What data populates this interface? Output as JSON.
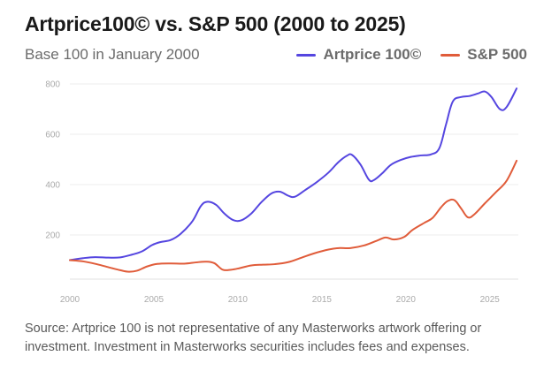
{
  "header": {
    "title": "Artprice100© vs. S&P 500 (2000 to 2025)",
    "subtitle": "Base 100 in January 2000"
  },
  "footnote": "Source: Artprice 100 is not representative of any Masterworks artwork offering or investment. Investment in Masterworks securities includes fees and expenses.",
  "chart_data": {
    "type": "line",
    "title": "Artprice100© vs. S&P 500 (2000 to 2025)",
    "subtitle": "Base 100 in January 2000",
    "xlim": [
      2000,
      2026.7
    ],
    "ylim": [
      0,
      840
    ],
    "xticks": [
      2000,
      2005,
      2010,
      2015,
      2020,
      2025
    ],
    "yticks": [
      200,
      400,
      600,
      800
    ],
    "grid": "horizontal",
    "legend": "top-right",
    "series": [
      {
        "name": "Artprice 100©",
        "color": "#5546e0",
        "points": [
          [
            2000,
            100
          ],
          [
            2000.8,
            108
          ],
          [
            2001.5,
            112
          ],
          [
            2002.3,
            110
          ],
          [
            2003,
            111
          ],
          [
            2003.7,
            122
          ],
          [
            2004.3,
            135
          ],
          [
            2004.9,
            160
          ],
          [
            2005.4,
            172
          ],
          [
            2006,
            180
          ],
          [
            2006.6,
            205
          ],
          [
            2007.3,
            255
          ],
          [
            2007.8,
            315
          ],
          [
            2008.2,
            332
          ],
          [
            2008.7,
            320
          ],
          [
            2009.2,
            285
          ],
          [
            2009.7,
            260
          ],
          [
            2010.2,
            258
          ],
          [
            2010.8,
            285
          ],
          [
            2011.4,
            330
          ],
          [
            2012,
            365
          ],
          [
            2012.5,
            372
          ],
          [
            2013,
            356
          ],
          [
            2013.4,
            352
          ],
          [
            2014,
            378
          ],
          [
            2014.7,
            410
          ],
          [
            2015.4,
            448
          ],
          [
            2016,
            490
          ],
          [
            2016.5,
            515
          ],
          [
            2016.8,
            518
          ],
          [
            2017.3,
            480
          ],
          [
            2017.8,
            420
          ],
          [
            2018.1,
            418
          ],
          [
            2018.6,
            445
          ],
          [
            2019.1,
            478
          ],
          [
            2019.7,
            498
          ],
          [
            2020.3,
            510
          ],
          [
            2020.9,
            516
          ],
          [
            2021.5,
            520
          ],
          [
            2022,
            545
          ],
          [
            2022.4,
            640
          ],
          [
            2022.8,
            730
          ],
          [
            2023.3,
            748
          ],
          [
            2023.8,
            752
          ],
          [
            2024.3,
            762
          ],
          [
            2024.7,
            770
          ],
          [
            2025.1,
            748
          ],
          [
            2025.6,
            700
          ],
          [
            2026,
            708
          ],
          [
            2026.6,
            782
          ]
        ]
      },
      {
        "name": "S&P 500",
        "color": "#e05c3a",
        "points": [
          [
            2000,
            100
          ],
          [
            2000.8,
            95
          ],
          [
            2001.6,
            84
          ],
          [
            2002.4,
            70
          ],
          [
            2003,
            60
          ],
          [
            2003.5,
            54
          ],
          [
            2004,
            58
          ],
          [
            2004.6,
            75
          ],
          [
            2005.2,
            85
          ],
          [
            2006,
            87
          ],
          [
            2006.8,
            86
          ],
          [
            2007.5,
            91
          ],
          [
            2008.1,
            94
          ],
          [
            2008.6,
            88
          ],
          [
            2009.1,
            62
          ],
          [
            2009.6,
            62
          ],
          [
            2010.1,
            68
          ],
          [
            2010.8,
            79
          ],
          [
            2011.5,
            82
          ],
          [
            2012.2,
            84
          ],
          [
            2013,
            92
          ],
          [
            2013.8,
            110
          ],
          [
            2014.6,
            128
          ],
          [
            2015.4,
            142
          ],
          [
            2016,
            148
          ],
          [
            2016.7,
            148
          ],
          [
            2017.5,
            158
          ],
          [
            2018.3,
            178
          ],
          [
            2018.8,
            190
          ],
          [
            2019.3,
            182
          ],
          [
            2019.9,
            192
          ],
          [
            2020.4,
            220
          ],
          [
            2021.1,
            248
          ],
          [
            2021.6,
            268
          ],
          [
            2022.1,
            310
          ],
          [
            2022.5,
            335
          ],
          [
            2022.9,
            338
          ],
          [
            2023.3,
            305
          ],
          [
            2023.7,
            270
          ],
          [
            2024.1,
            283
          ],
          [
            2024.7,
            325
          ],
          [
            2025.4,
            372
          ],
          [
            2026,
            415
          ],
          [
            2026.6,
            495
          ]
        ]
      }
    ]
  }
}
